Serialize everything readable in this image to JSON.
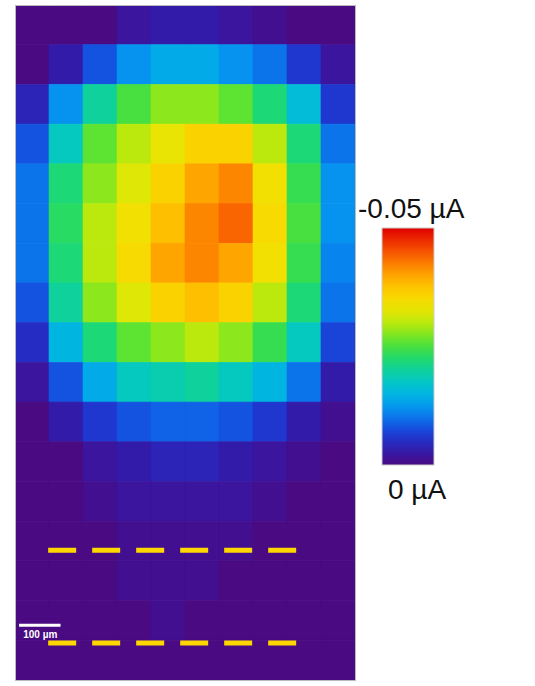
{
  "chart_data": {
    "type": "heatmap",
    "xlim": [
      0,
      820
    ],
    "ylim": [
      0,
      1530
    ],
    "tick_labels": false,
    "x_bins": [
      0,
      82,
      164,
      246,
      328,
      410,
      492,
      574,
      656,
      738,
      820
    ],
    "y_bins": [
      0,
      90,
      180,
      270,
      360,
      450,
      540,
      630,
      720,
      810,
      900,
      990,
      1080,
      1170,
      1260,
      1350,
      1440,
      1530
    ],
    "cells": [
      [
        0,
        0,
        0,
        -0.002,
        -0.003,
        -0.003,
        -0.002,
        -0.001,
        0,
        0
      ],
      [
        0,
        -0.003,
        -0.008,
        -0.012,
        -0.014,
        -0.014,
        -0.012,
        -0.01,
        -0.006,
        -0.002
      ],
      [
        -0.004,
        -0.012,
        -0.02,
        -0.025,
        -0.028,
        -0.028,
        -0.026,
        -0.022,
        -0.016,
        -0.006
      ],
      [
        -0.008,
        -0.018,
        -0.026,
        -0.03,
        -0.033,
        -0.036,
        -0.036,
        -0.03,
        -0.022,
        -0.01
      ],
      [
        -0.01,
        -0.022,
        -0.028,
        -0.032,
        -0.036,
        -0.04,
        -0.042,
        -0.034,
        -0.024,
        -0.012
      ],
      [
        -0.01,
        -0.023,
        -0.03,
        -0.034,
        -0.038,
        -0.042,
        -0.044,
        -0.035,
        -0.025,
        -0.012
      ],
      [
        -0.01,
        -0.022,
        -0.03,
        -0.035,
        -0.04,
        -0.042,
        -0.04,
        -0.034,
        -0.024,
        -0.011
      ],
      [
        -0.008,
        -0.02,
        -0.028,
        -0.032,
        -0.036,
        -0.038,
        -0.036,
        -0.03,
        -0.022,
        -0.01
      ],
      [
        -0.005,
        -0.015,
        -0.022,
        -0.026,
        -0.028,
        -0.03,
        -0.028,
        -0.024,
        -0.018,
        -0.007
      ],
      [
        -0.002,
        -0.008,
        -0.014,
        -0.018,
        -0.019,
        -0.02,
        -0.018,
        -0.015,
        -0.01,
        -0.003
      ],
      [
        0,
        -0.003,
        -0.006,
        -0.008,
        -0.009,
        -0.009,
        -0.008,
        -0.006,
        -0.003,
        -0.001
      ],
      [
        0,
        0,
        -0.002,
        -0.003,
        -0.004,
        -0.004,
        -0.003,
        -0.002,
        -0.001,
        0
      ],
      [
        0,
        0,
        -0.001,
        -0.002,
        -0.002,
        -0.002,
        -0.002,
        -0.001,
        0,
        0
      ],
      [
        0,
        0,
        0,
        -0.001,
        -0.001,
        -0.001,
        -0.001,
        0,
        0,
        0
      ],
      [
        0,
        0,
        0,
        -0.001,
        -0.001,
        -0.001,
        0,
        0,
        0,
        0
      ],
      [
        0,
        0,
        0,
        0,
        -0.001,
        0,
        0,
        0,
        0,
        0
      ],
      [
        0,
        0,
        0,
        0,
        0,
        0,
        0,
        0,
        0,
        0
      ]
    ],
    "colorbar": {
      "range": [
        -0.05,
        0
      ],
      "ticks": [
        {
          "value": -0.05,
          "label": "-0.05 µA"
        },
        {
          "value": 0,
          "label": "0 µA"
        }
      ]
    },
    "scale_bar": {
      "length": 100,
      "label": "100 µm"
    },
    "dashed_lines": {
      "y": [
        1235,
        1445
      ],
      "x_range": [
        80,
        700
      ],
      "color": "#ffd700"
    }
  }
}
